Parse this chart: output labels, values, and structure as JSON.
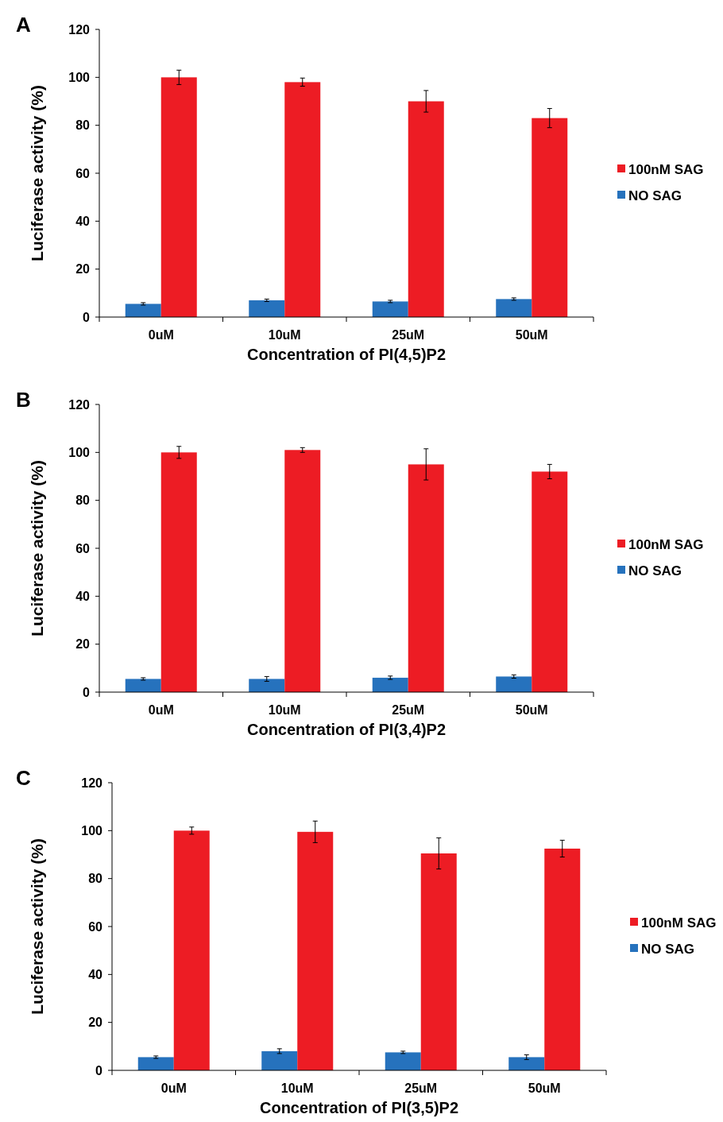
{
  "chart_data": [
    {
      "type": "bar",
      "title": "A",
      "xlabel": "Concentration of PI(4,5)P2",
      "ylabel": "Luciferase activity  (%)",
      "categories": [
        "0uM",
        "10uM",
        "25uM",
        "50uM"
      ],
      "ylim": [
        0,
        120
      ],
      "yticks": [
        0,
        20,
        40,
        60,
        80,
        100,
        120
      ],
      "legend": "right",
      "series": [
        {
          "name": "NO SAG",
          "color": "#2672bd",
          "values": [
            5.5,
            7,
            6.5,
            7.5
          ],
          "errors": [
            0.5,
            0.5,
            0.5,
            0.5
          ]
        },
        {
          "name": "100nM SAG",
          "color": "#ed1c24",
          "values": [
            100,
            98,
            90,
            83
          ],
          "errors": [
            3,
            1.7,
            4.5,
            4
          ]
        }
      ]
    },
    {
      "type": "bar",
      "title": "B",
      "xlabel": "Concentration of PI(3,4)P2",
      "ylabel": "Luciferase activity  (%)",
      "categories": [
        "0uM",
        "10uM",
        "25uM",
        "50uM"
      ],
      "ylim": [
        0,
        120
      ],
      "yticks": [
        0,
        20,
        40,
        60,
        80,
        100,
        120
      ],
      "legend": "right",
      "series": [
        {
          "name": "NO SAG",
          "color": "#2672bd",
          "values": [
            5.5,
            5.5,
            6,
            6.5
          ],
          "errors": [
            0.5,
            1,
            0.7,
            0.7
          ]
        },
        {
          "name": "100nM SAG",
          "color": "#ed1c24",
          "values": [
            100,
            101,
            95,
            92
          ],
          "errors": [
            2.5,
            1,
            6.5,
            3
          ]
        }
      ]
    },
    {
      "type": "bar",
      "title": "C",
      "xlabel": "Concentration of PI(3,5)P2",
      "ylabel": "Luciferase activity  (%)",
      "categories": [
        "0uM",
        "10uM",
        "25uM",
        "50uM"
      ],
      "ylim": [
        0,
        120
      ],
      "yticks": [
        0,
        20,
        40,
        60,
        80,
        100,
        120
      ],
      "legend": "right",
      "series": [
        {
          "name": "NO SAG",
          "color": "#2672bd",
          "values": [
            5.5,
            8,
            7.5,
            5.5
          ],
          "errors": [
            0.5,
            1,
            0.5,
            1
          ]
        },
        {
          "name": "100nM SAG",
          "color": "#ed1c24",
          "values": [
            100,
            99.5,
            90.5,
            92.5
          ],
          "errors": [
            1.5,
            4.5,
            6.5,
            3.5
          ]
        }
      ]
    }
  ]
}
